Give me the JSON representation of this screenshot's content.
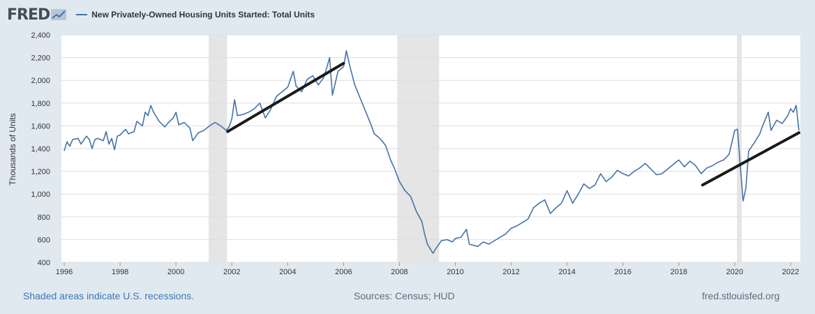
{
  "header": {
    "logo_text": "FRED",
    "logo_icon": "chart-line-icon"
  },
  "footer": {
    "recessions_note": "Shaded areas indicate U.S. recessions.",
    "sources": "Sources: Census; HUD",
    "site": "fred.stlouisfed.org"
  },
  "colors": {
    "background": "#e1e9f0",
    "plot": "#ffffff",
    "series": "#4572a7",
    "trend": "#1a1a1a",
    "recession": "#e5e5e5",
    "grid": "#dedede"
  },
  "chart_data": {
    "type": "line",
    "series_name": "New Privately-Owned Housing Units Started: Total Units",
    "ylabel": "Thousands of Units",
    "xlabel": "",
    "xlim": [
      1995.9,
      2022.35
    ],
    "ylim": [
      400,
      2400
    ],
    "x_ticks": [
      "1996",
      "1998",
      "2000",
      "2002",
      "2004",
      "2006",
      "2008",
      "2010",
      "2012",
      "2014",
      "2016",
      "2018",
      "2020",
      "2022"
    ],
    "y_ticks": [
      "400",
      "600",
      "800",
      "1,000",
      "1,200",
      "1,400",
      "1,600",
      "1,800",
      "2,000",
      "2,200",
      "2,400"
    ],
    "recessions": [
      [
        2001.17,
        2001.83
      ],
      [
        2007.92,
        2009.42
      ],
      [
        2020.08,
        2020.25
      ]
    ],
    "series_points": [
      [
        1996.0,
        1380
      ],
      [
        1996.1,
        1460
      ],
      [
        1996.2,
        1420
      ],
      [
        1996.3,
        1480
      ],
      [
        1996.5,
        1490
      ],
      [
        1996.6,
        1440
      ],
      [
        1996.8,
        1510
      ],
      [
        1996.9,
        1480
      ],
      [
        1997.0,
        1400
      ],
      [
        1997.1,
        1480
      ],
      [
        1997.2,
        1490
      ],
      [
        1997.4,
        1470
      ],
      [
        1997.5,
        1550
      ],
      [
        1997.6,
        1440
      ],
      [
        1997.7,
        1490
      ],
      [
        1997.8,
        1390
      ],
      [
        1997.9,
        1510
      ],
      [
        1998.0,
        1520
      ],
      [
        1998.2,
        1570
      ],
      [
        1998.3,
        1530
      ],
      [
        1998.5,
        1550
      ],
      [
        1998.6,
        1640
      ],
      [
        1998.8,
        1600
      ],
      [
        1998.9,
        1720
      ],
      [
        1999.0,
        1690
      ],
      [
        1999.1,
        1780
      ],
      [
        1999.2,
        1720
      ],
      [
        1999.4,
        1640
      ],
      [
        1999.6,
        1590
      ],
      [
        1999.7,
        1620
      ],
      [
        1999.9,
        1670
      ],
      [
        2000.0,
        1720
      ],
      [
        2000.1,
        1610
      ],
      [
        2000.3,
        1630
      ],
      [
        2000.5,
        1580
      ],
      [
        2000.6,
        1470
      ],
      [
        2000.8,
        1540
      ],
      [
        2001.0,
        1560
      ],
      [
        2001.2,
        1600
      ],
      [
        2001.4,
        1630
      ],
      [
        2001.6,
        1600
      ],
      [
        2001.8,
        1560
      ],
      [
        2001.9,
        1590
      ],
      [
        2002.0,
        1660
      ],
      [
        2002.1,
        1830
      ],
      [
        2002.2,
        1690
      ],
      [
        2002.4,
        1700
      ],
      [
        2002.6,
        1720
      ],
      [
        2002.8,
        1750
      ],
      [
        2003.0,
        1800
      ],
      [
        2003.2,
        1670
      ],
      [
        2003.4,
        1750
      ],
      [
        2003.6,
        1860
      ],
      [
        2003.8,
        1900
      ],
      [
        2004.0,
        1940
      ],
      [
        2004.2,
        2080
      ],
      [
        2004.3,
        1950
      ],
      [
        2004.5,
        1900
      ],
      [
        2004.7,
        2010
      ],
      [
        2004.9,
        2040
      ],
      [
        2005.1,
        1960
      ],
      [
        2005.3,
        2030
      ],
      [
        2005.5,
        2200
      ],
      [
        2005.6,
        1870
      ],
      [
        2005.8,
        2080
      ],
      [
        2006.0,
        2120
      ],
      [
        2006.1,
        2260
      ],
      [
        2006.2,
        2150
      ],
      [
        2006.4,
        1960
      ],
      [
        2006.6,
        1840
      ],
      [
        2006.8,
        1720
      ],
      [
        2007.0,
        1600
      ],
      [
        2007.1,
        1530
      ],
      [
        2007.3,
        1490
      ],
      [
        2007.5,
        1430
      ],
      [
        2007.7,
        1290
      ],
      [
        2007.8,
        1240
      ],
      [
        2008.0,
        1110
      ],
      [
        2008.2,
        1030
      ],
      [
        2008.4,
        980
      ],
      [
        2008.6,
        850
      ],
      [
        2008.8,
        760
      ],
      [
        2008.9,
        650
      ],
      [
        2009.0,
        560
      ],
      [
        2009.2,
        480
      ],
      [
        2009.3,
        520
      ],
      [
        2009.5,
        590
      ],
      [
        2009.7,
        600
      ],
      [
        2009.9,
        580
      ],
      [
        2010.0,
        610
      ],
      [
        2010.2,
        620
      ],
      [
        2010.4,
        690
      ],
      [
        2010.5,
        560
      ],
      [
        2010.8,
        540
      ],
      [
        2011.0,
        580
      ],
      [
        2011.2,
        560
      ],
      [
        2011.4,
        590
      ],
      [
        2011.6,
        620
      ],
      [
        2011.8,
        650
      ],
      [
        2012.0,
        700
      ],
      [
        2012.2,
        720
      ],
      [
        2012.4,
        750
      ],
      [
        2012.6,
        780
      ],
      [
        2012.8,
        880
      ],
      [
        2013.0,
        920
      ],
      [
        2013.2,
        950
      ],
      [
        2013.4,
        830
      ],
      [
        2013.6,
        880
      ],
      [
        2013.8,
        920
      ],
      [
        2014.0,
        1030
      ],
      [
        2014.2,
        920
      ],
      [
        2014.4,
        1000
      ],
      [
        2014.6,
        1090
      ],
      [
        2014.8,
        1050
      ],
      [
        2015.0,
        1080
      ],
      [
        2015.2,
        1180
      ],
      [
        2015.4,
        1110
      ],
      [
        2015.6,
        1150
      ],
      [
        2015.8,
        1210
      ],
      [
        2016.0,
        1180
      ],
      [
        2016.2,
        1160
      ],
      [
        2016.4,
        1200
      ],
      [
        2016.6,
        1230
      ],
      [
        2016.8,
        1270
      ],
      [
        2017.0,
        1220
      ],
      [
        2017.2,
        1170
      ],
      [
        2017.4,
        1180
      ],
      [
        2017.6,
        1220
      ],
      [
        2017.8,
        1260
      ],
      [
        2018.0,
        1300
      ],
      [
        2018.2,
        1240
      ],
      [
        2018.4,
        1290
      ],
      [
        2018.6,
        1250
      ],
      [
        2018.8,
        1180
      ],
      [
        2019.0,
        1230
      ],
      [
        2019.2,
        1250
      ],
      [
        2019.4,
        1280
      ],
      [
        2019.6,
        1300
      ],
      [
        2019.8,
        1350
      ],
      [
        2020.0,
        1560
      ],
      [
        2020.1,
        1570
      ],
      [
        2020.3,
        940
      ],
      [
        2020.4,
        1050
      ],
      [
        2020.5,
        1380
      ],
      [
        2020.7,
        1450
      ],
      [
        2020.9,
        1530
      ],
      [
        2021.0,
        1600
      ],
      [
        2021.2,
        1720
      ],
      [
        2021.3,
        1560
      ],
      [
        2021.5,
        1650
      ],
      [
        2021.7,
        1620
      ],
      [
        2021.9,
        1690
      ],
      [
        2022.0,
        1750
      ],
      [
        2022.1,
        1720
      ],
      [
        2022.2,
        1780
      ],
      [
        2022.3,
        1560
      ]
    ],
    "trend_lines": [
      [
        [
          2001.85,
          1550
        ],
        [
          2006.0,
          2150
        ]
      ],
      [
        [
          2018.85,
          1080
        ],
        [
          2022.3,
          1540
        ]
      ]
    ]
  }
}
